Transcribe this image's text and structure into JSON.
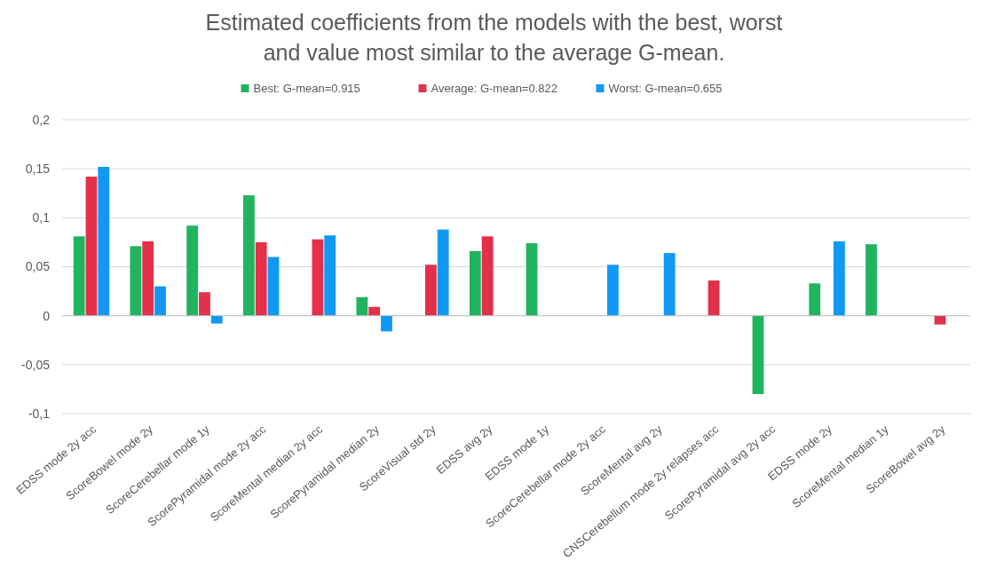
{
  "chart_data": {
    "type": "bar",
    "title": "Estimated coefficients from the models with the best, worst and value most similar to the average G-mean.",
    "categories": [
      "EDSS mode 2y acc",
      "ScoreBowel mode 2y",
      "ScoreCerebellar mode 1y",
      "ScorePyramidal mode 2y acc",
      "ScoreMental  median 2y acc",
      "ScorePyramidal median 2y",
      "ScoreVisual std 2y",
      "EDSS avg 2y",
      "EDSS mode 1y",
      "ScoreCerebellar mode 2y acc",
      "ScoreMental avg 2y",
      "CNSCerebellum mode 2y relapses acc",
      "ScorePyramidal avg 2y acc",
      "EDSS mode 2y",
      "ScoreMental median 1y",
      "ScoreBowel avg 2y"
    ],
    "series": [
      {
        "name": "Best: G-mean=0.915",
        "color": "#21b35f",
        "values": [
          0.081,
          0.071,
          0.092,
          0.123,
          null,
          0.019,
          null,
          0.066,
          0.074,
          null,
          null,
          null,
          -0.08,
          0.033,
          0.073,
          null
        ]
      },
      {
        "name": "Average: G-mean=0.822",
        "color": "#e3304b",
        "values": [
          0.142,
          0.076,
          0.024,
          0.075,
          0.078,
          0.009,
          0.052,
          0.081,
          null,
          null,
          null,
          0.036,
          null,
          null,
          null,
          -0.009
        ]
      },
      {
        "name": "Worst: G-mean=0.655",
        "color": "#1198f5",
        "values": [
          0.152,
          0.03,
          -0.008,
          0.06,
          0.082,
          -0.016,
          0.088,
          null,
          null,
          0.052,
          0.064,
          null,
          null,
          0.076,
          null,
          null
        ]
      }
    ],
    "ylim": [
      -0.1,
      0.2
    ],
    "yticks": [
      {
        "value": -0.1,
        "label": "-0,1"
      },
      {
        "value": -0.05,
        "label": "-0,05"
      },
      0,
      {
        "value": 0.05,
        "label": "0,05"
      },
      {
        "value": 0.1,
        "label": "0,1"
      },
      {
        "value": 0.15,
        "label": "0,15"
      },
      {
        "value": 0.2,
        "label": "0,2"
      }
    ],
    "grid": "y",
    "legend": "top"
  }
}
